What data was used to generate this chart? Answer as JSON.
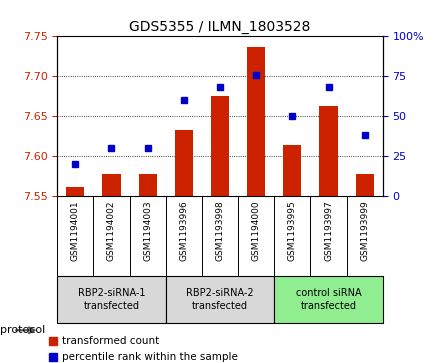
{
  "title": "GDS5355 / ILMN_1803528",
  "samples": [
    "GSM1194001",
    "GSM1194002",
    "GSM1194003",
    "GSM1193996",
    "GSM1193998",
    "GSM1194000",
    "GSM1193995",
    "GSM1193997",
    "GSM1193999"
  ],
  "bar_values": [
    7.561,
    7.578,
    7.578,
    7.633,
    7.675,
    7.737,
    7.614,
    7.663,
    7.578
  ],
  "dot_values": [
    20,
    30,
    30,
    60,
    68,
    76,
    50,
    68,
    38
  ],
  "ymin": 7.55,
  "ymax": 7.75,
  "y_ticks": [
    7.55,
    7.6,
    7.65,
    7.7,
    7.75
  ],
  "y2min": 0,
  "y2max": 100,
  "y2_ticks": [
    0,
    25,
    50,
    75,
    100
  ],
  "groups": [
    {
      "label": "RBP2-siRNA-1\ntransfected",
      "start": 0,
      "end": 3,
      "color": "#d8d8d8"
    },
    {
      "label": "RBP2-siRNA-2\ntransfected",
      "start": 3,
      "end": 6,
      "color": "#d8d8d8"
    },
    {
      "label": "control siRNA\ntransfected",
      "start": 6,
      "end": 9,
      "color": "#90ee90"
    }
  ],
  "bar_color": "#cc2200",
  "dot_color": "#0000cc",
  "bar_bottom": 7.55,
  "protocol_label": "protocol",
  "legend_bar_label": "transformed count",
  "legend_dot_label": "percentile rank within the sample",
  "tick_label_color_left": "#cc2200",
  "tick_label_color_right": "#0000cc"
}
